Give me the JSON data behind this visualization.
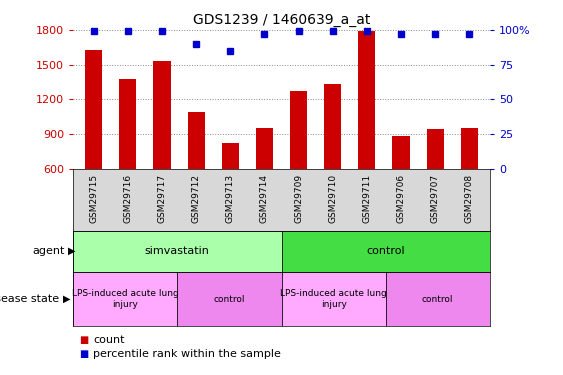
{
  "title": "GDS1239 / 1460639_a_at",
  "samples": [
    "GSM29715",
    "GSM29716",
    "GSM29717",
    "GSM29712",
    "GSM29713",
    "GSM29714",
    "GSM29709",
    "GSM29710",
    "GSM29711",
    "GSM29706",
    "GSM29707",
    "GSM29708"
  ],
  "counts": [
    1630,
    1375,
    1530,
    1090,
    820,
    950,
    1270,
    1330,
    1790,
    880,
    945,
    950
  ],
  "percentiles": [
    99,
    99,
    99,
    90,
    85,
    97,
    99,
    99,
    99,
    97,
    97,
    97
  ],
  "ylim_left": [
    600,
    1800
  ],
  "ylim_right": [
    0,
    100
  ],
  "yticks_left": [
    600,
    900,
    1200,
    1500,
    1800
  ],
  "yticks_right": [
    0,
    25,
    50,
    75,
    100
  ],
  "bar_color": "#cc0000",
  "dot_color": "#0000cc",
  "bar_width": 0.5,
  "agent_labels": [
    {
      "label": "simvastatin",
      "start": 0,
      "end": 6,
      "color": "#aaffaa"
    },
    {
      "label": "control",
      "start": 6,
      "end": 12,
      "color": "#44dd44"
    }
  ],
  "disease_labels": [
    {
      "label": "LPS-induced acute lung\ninjury",
      "start": 0,
      "end": 3,
      "color": "#ffaaff"
    },
    {
      "label": "control",
      "start": 3,
      "end": 6,
      "color": "#ee88ee"
    },
    {
      "label": "LPS-induced acute lung\ninjury",
      "start": 6,
      "end": 9,
      "color": "#ffaaff"
    },
    {
      "label": "control",
      "start": 9,
      "end": 12,
      "color": "#ee88ee"
    }
  ],
  "agent_row_label": "agent",
  "disease_row_label": "disease state",
  "legend_count_label": "count",
  "legend_pct_label": "percentile rank within the sample",
  "xlabel_color": "#cc0000",
  "ylabel_right_color": "#0000cc",
  "grid_color": "#888888",
  "background_color": "#ffffff"
}
